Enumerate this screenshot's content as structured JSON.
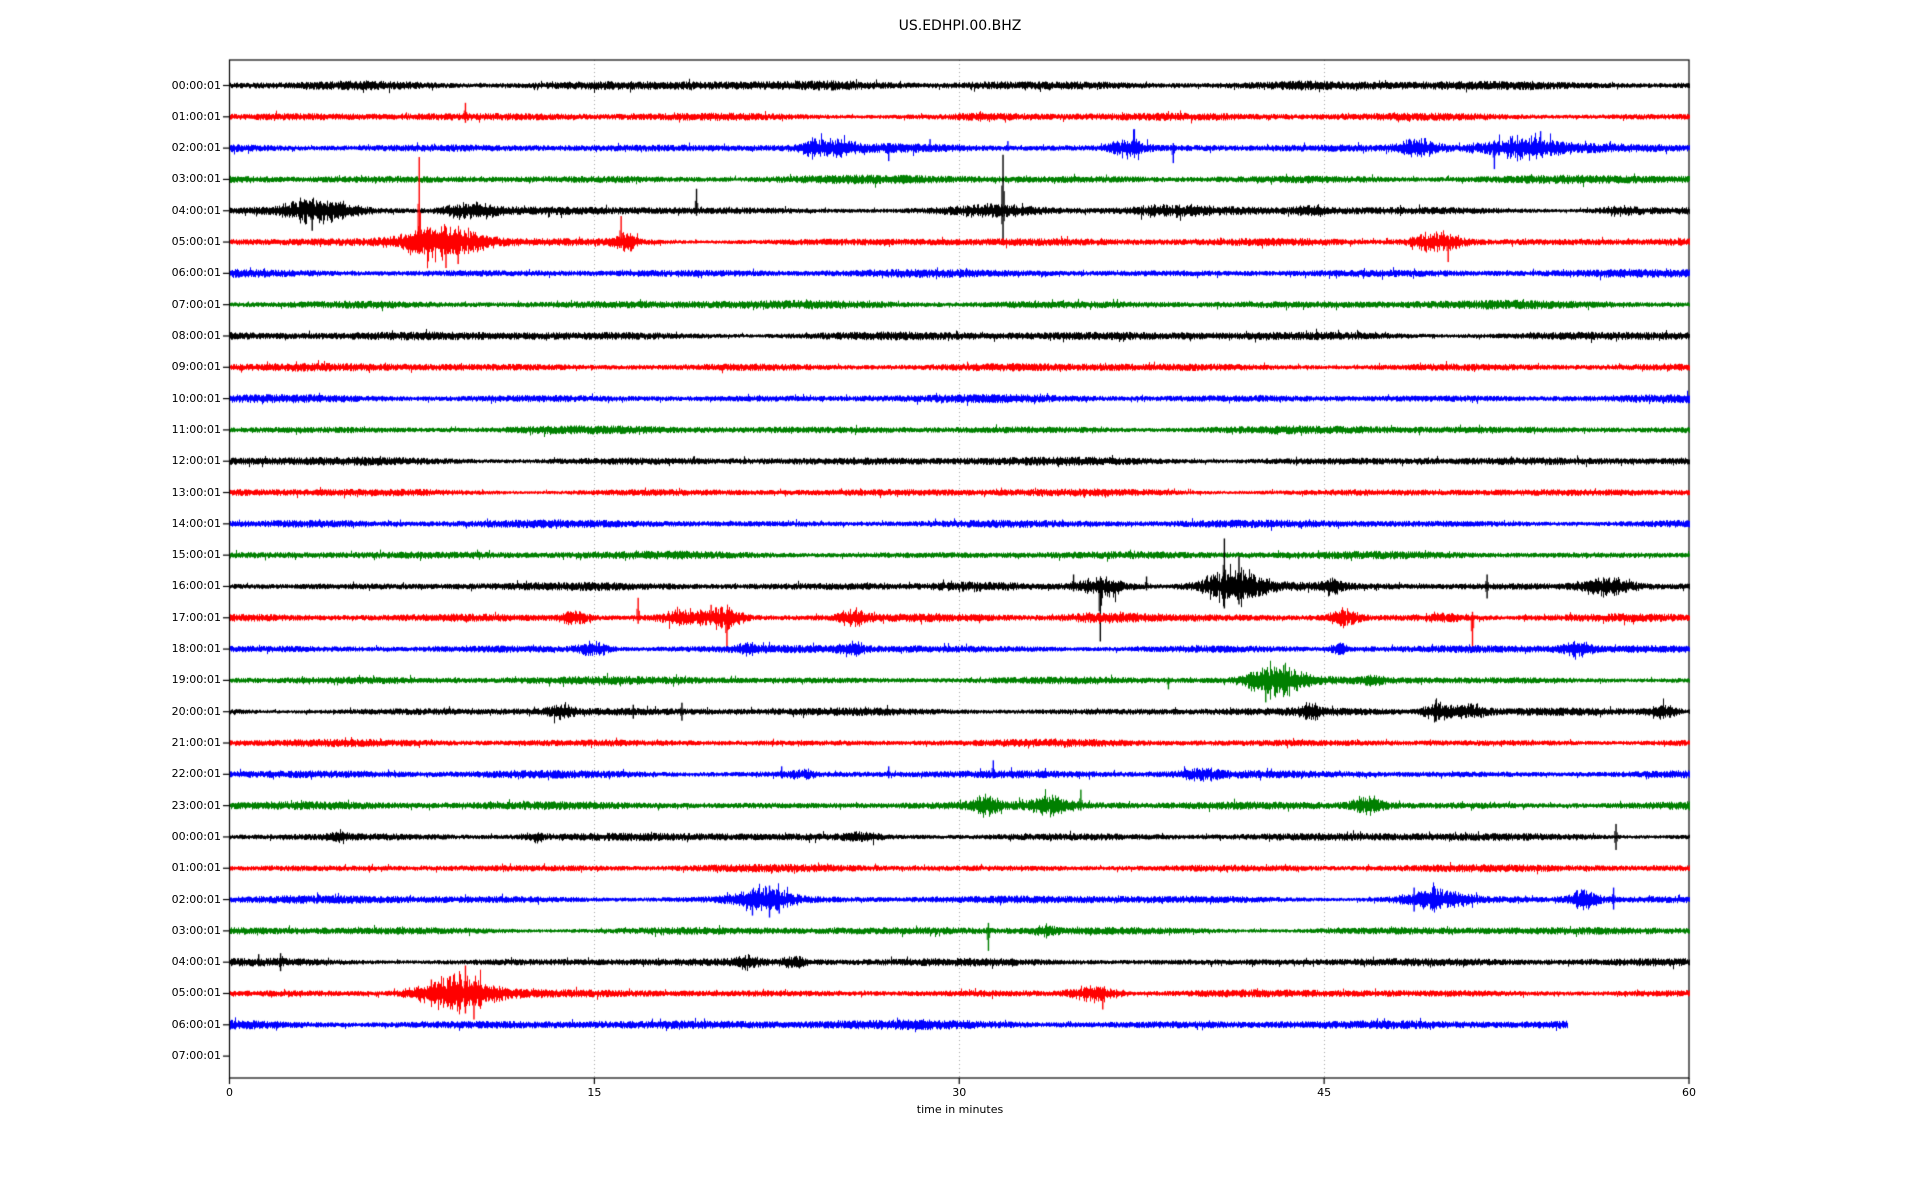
{
  "figure": {
    "title": "US.EDHPI.00.BHZ"
  },
  "chart_data": {
    "type": "line",
    "variant": "seismogram-helicorder-dayplot",
    "title": "US.EDHPI.00.BHZ",
    "xlabel": "time in minutes",
    "xlim": [
      0,
      60
    ],
    "x_ticks": [
      "0",
      "15",
      "30",
      "45",
      "60"
    ],
    "x_tick_values": [
      0,
      15,
      30,
      45,
      60
    ],
    "grid_minutes": [
      15,
      30,
      45
    ],
    "grid_style": "dotted-gray",
    "legend": "none",
    "color_cycle": [
      "#000000",
      "#ff0000",
      "#0000ff",
      "#008000"
    ],
    "grid_color": "#999999",
    "axis_color": "#000000",
    "minutes_per_row": 60,
    "rows": [
      {
        "label": "00:00:01",
        "color": 0,
        "noise": 3.8,
        "end": 60,
        "bursts": [
          {
            "m": 6,
            "w": 4,
            "a": 0.8
          },
          {
            "m": 25,
            "w": 3,
            "a": 0.8
          },
          {
            "m": 31,
            "w": 2,
            "a": 0.8
          },
          {
            "m": 44,
            "w": 2,
            "a": 0.8
          }
        ],
        "spikes": []
      },
      {
        "label": "01:00:01",
        "color": 1,
        "noise": 3.4,
        "end": 60,
        "bursts": [
          {
            "m": 31,
            "w": 1.5,
            "a": 1.5
          }
        ],
        "spikes": [
          {
            "m": 9.7,
            "u": 14,
            "d": 6
          }
        ]
      },
      {
        "label": "02:00:01",
        "color": 2,
        "noise": 3.6,
        "end": 60,
        "bursts": [
          {
            "m": 24.0,
            "w": 0.9,
            "a": 5
          },
          {
            "m": 25.1,
            "w": 0.9,
            "a": 6
          },
          {
            "m": 36.9,
            "w": 1.1,
            "a": 6
          },
          {
            "m": 48.9,
            "w": 1.4,
            "a": 6
          },
          {
            "m": 53.0,
            "w": 2.8,
            "a": 6
          }
        ],
        "spikes": [
          {
            "m": 27.1,
            "u": 5,
            "d": 13
          },
          {
            "m": 28.8,
            "u": 9,
            "d": 4
          },
          {
            "m": 32.0,
            "u": 7,
            "d": 3
          },
          {
            "m": 37.2,
            "u": 19,
            "d": 6
          },
          {
            "m": 38.8,
            "u": 5,
            "d": 15
          },
          {
            "m": 52.0,
            "u": 6,
            "d": 21
          },
          {
            "m": 53.9,
            "u": 17,
            "d": 6
          }
        ]
      },
      {
        "label": "03:00:01",
        "color": 3,
        "noise": 3.6,
        "end": 60,
        "bursts": [],
        "spikes": []
      },
      {
        "label": "04:00:01",
        "color": 0,
        "noise": 3.4,
        "end": 60,
        "bursts": [
          {
            "m": 3.6,
            "w": 2.4,
            "a": 8
          },
          {
            "m": 9.9,
            "w": 1.8,
            "a": 5
          },
          {
            "m": 31.3,
            "w": 3,
            "a": 2.5
          },
          {
            "m": 38.6,
            "w": 3,
            "a": 3
          },
          {
            "m": 44.5,
            "w": 1,
            "a": 2
          },
          {
            "m": 57.2,
            "w": 1.5,
            "a": 2.5
          }
        ],
        "spikes": [
          {
            "m": 3.4,
            "u": 6,
            "d": 20
          },
          {
            "m": 19.2,
            "u": 22,
            "d": 5
          },
          {
            "m": 31.8,
            "u": 56,
            "d": 30
          }
        ]
      },
      {
        "label": "05:00:01",
        "color": 1,
        "noise": 3.4,
        "end": 60,
        "bursts": [
          {
            "m": 8.7,
            "w": 2.8,
            "a": 12
          },
          {
            "m": 16.2,
            "w": 0.9,
            "a": 5
          },
          {
            "m": 49.6,
            "w": 1.8,
            "a": 7
          }
        ],
        "spikes": [
          {
            "m": 7.8,
            "u": 85,
            "d": 12
          },
          {
            "m": 8.9,
            "u": 10,
            "d": 26
          },
          {
            "m": 9.4,
            "u": 8,
            "d": 22
          },
          {
            "m": 16.1,
            "u": 26,
            "d": 6
          },
          {
            "m": 50.1,
            "u": 6,
            "d": 20
          }
        ]
      },
      {
        "label": "06:00:01",
        "color": 2,
        "noise": 3.4,
        "end": 60,
        "bursts": [],
        "spikes": []
      },
      {
        "label": "07:00:01",
        "color": 3,
        "noise": 3.6,
        "end": 60,
        "bursts": [],
        "spikes": []
      },
      {
        "label": "08:00:01",
        "color": 0,
        "noise": 3.8,
        "end": 60,
        "bursts": [],
        "spikes": []
      },
      {
        "label": "09:00:01",
        "color": 1,
        "noise": 3.4,
        "end": 60,
        "bursts": [],
        "spikes": []
      },
      {
        "label": "10:00:01",
        "color": 2,
        "noise": 3.4,
        "end": 60,
        "bursts": [],
        "spikes": []
      },
      {
        "label": "11:00:01",
        "color": 3,
        "noise": 3.4,
        "end": 60,
        "bursts": [],
        "spikes": []
      },
      {
        "label": "12:00:01",
        "color": 0,
        "noise": 3.6,
        "end": 60,
        "bursts": [],
        "spikes": []
      },
      {
        "label": "13:00:01",
        "color": 1,
        "noise": 3.2,
        "end": 60,
        "bursts": [],
        "spikes": []
      },
      {
        "label": "14:00:01",
        "color": 2,
        "noise": 3.4,
        "end": 60,
        "bursts": [],
        "spikes": []
      },
      {
        "label": "15:00:01",
        "color": 3,
        "noise": 3.4,
        "end": 60,
        "bursts": [],
        "spikes": []
      },
      {
        "label": "16:00:01",
        "color": 0,
        "noise": 3.4,
        "end": 60,
        "bursts": [
          {
            "m": 30.5,
            "w": 3,
            "a": 2
          },
          {
            "m": 35.9,
            "w": 1.5,
            "a": 7
          },
          {
            "m": 41.2,
            "w": 2.0,
            "a": 12
          },
          {
            "m": 45.3,
            "w": 0.6,
            "a": 5
          },
          {
            "m": 56.6,
            "w": 1.8,
            "a": 6
          }
        ],
        "spikes": [
          {
            "m": 34.7,
            "u": 12,
            "d": 5
          },
          {
            "m": 35.8,
            "u": 8,
            "d": 55
          },
          {
            "m": 37.7,
            "u": 10,
            "d": 4
          },
          {
            "m": 40.9,
            "u": 48,
            "d": 22
          },
          {
            "m": 41.5,
            "u": 30,
            "d": 18
          },
          {
            "m": 51.7,
            "u": 12,
            "d": 12
          }
        ]
      },
      {
        "label": "17:00:01",
        "color": 1,
        "noise": 3.4,
        "end": 60,
        "bursts": [
          {
            "m": 14.2,
            "w": 0.9,
            "a": 5
          },
          {
            "m": 18.8,
            "w": 1.8,
            "a": 5
          },
          {
            "m": 20.4,
            "w": 1.1,
            "a": 7
          },
          {
            "m": 25.6,
            "w": 1.0,
            "a": 5
          },
          {
            "m": 35.8,
            "w": 2.5,
            "a": 2
          },
          {
            "m": 45.8,
            "w": 0.9,
            "a": 6
          },
          {
            "m": 49.9,
            "w": 2,
            "a": 2
          }
        ],
        "spikes": [
          {
            "m": 16.8,
            "u": 20,
            "d": 6
          },
          {
            "m": 19.8,
            "u": 13,
            "d": 5
          },
          {
            "m": 20.45,
            "u": 8,
            "d": 34
          },
          {
            "m": 51.1,
            "u": 6,
            "d": 30
          }
        ]
      },
      {
        "label": "18:00:01",
        "color": 2,
        "noise": 3.4,
        "end": 60,
        "bursts": [
          {
            "m": 14.9,
            "w": 1.0,
            "a": 5
          },
          {
            "m": 21.3,
            "w": 0.6,
            "a": 3
          },
          {
            "m": 25.6,
            "w": 0.8,
            "a": 4
          },
          {
            "m": 45.6,
            "w": 0.7,
            "a": 3
          },
          {
            "m": 55.4,
            "w": 0.9,
            "a": 4
          }
        ],
        "spikes": []
      },
      {
        "label": "19:00:01",
        "color": 3,
        "noise": 3.4,
        "end": 60,
        "bursts": [
          {
            "m": 43.0,
            "w": 1.8,
            "a": 11
          },
          {
            "m": 47.0,
            "w": 0.6,
            "a": 3
          }
        ],
        "spikes": [
          {
            "m": 38.6,
            "u": 3,
            "d": 9
          },
          {
            "m": 42.6,
            "u": 10,
            "d": 22
          },
          {
            "m": 43.4,
            "u": 16,
            "d": 12
          }
        ]
      },
      {
        "label": "20:00:01",
        "color": 0,
        "noise": 3.4,
        "end": 60,
        "bursts": [
          {
            "m": 13.6,
            "w": 0.8,
            "a": 4
          },
          {
            "m": 44.4,
            "w": 0.7,
            "a": 5
          },
          {
            "m": 49.7,
            "w": 0.9,
            "a": 7
          },
          {
            "m": 51.0,
            "w": 1.0,
            "a": 5
          },
          {
            "m": 58.9,
            "w": 0.9,
            "a": 5
          }
        ],
        "spikes": [
          {
            "m": 16.6,
            "u": 7,
            "d": 7
          },
          {
            "m": 18.6,
            "u": 9,
            "d": 9
          },
          {
            "m": 49.6,
            "u": 12,
            "d": 10
          }
        ]
      },
      {
        "label": "21:00:01",
        "color": 1,
        "noise": 3.2,
        "end": 60,
        "bursts": [],
        "spikes": []
      },
      {
        "label": "22:00:01",
        "color": 2,
        "noise": 3.4,
        "end": 60,
        "bursts": [
          {
            "m": 23.5,
            "w": 0.8,
            "a": 3
          },
          {
            "m": 39.9,
            "w": 1.4,
            "a": 3
          }
        ],
        "spikes": [
          {
            "m": 22.7,
            "u": 8,
            "d": 4
          },
          {
            "m": 27.1,
            "u": 8,
            "d": 4
          },
          {
            "m": 31.4,
            "u": 14,
            "d": 4
          }
        ]
      },
      {
        "label": "23:00:01",
        "color": 3,
        "noise": 3.6,
        "end": 60,
        "bursts": [
          {
            "m": 31.1,
            "w": 0.9,
            "a": 6
          },
          {
            "m": 33.8,
            "w": 1.3,
            "a": 6
          },
          {
            "m": 46.8,
            "w": 1.1,
            "a": 6
          }
        ],
        "spikes": [
          {
            "m": 35.0,
            "u": 16,
            "d": 5
          }
        ]
      },
      {
        "label": "00:00:01",
        "color": 0,
        "noise": 3.4,
        "end": 60,
        "bursts": [
          {
            "m": 4.5,
            "w": 0.6,
            "a": 3
          },
          {
            "m": 12.5,
            "w": 0.7,
            "a": 3
          },
          {
            "m": 26.0,
            "w": 1.2,
            "a": 2
          }
        ],
        "spikes": [
          {
            "m": 57.0,
            "u": 13,
            "d": 13
          }
        ]
      },
      {
        "label": "01:00:01",
        "color": 1,
        "noise": 3.2,
        "end": 60,
        "bursts": [],
        "spikes": []
      },
      {
        "label": "02:00:01",
        "color": 2,
        "noise": 3.4,
        "end": 60,
        "bursts": [
          {
            "m": 21.9,
            "w": 1.8,
            "a": 9
          },
          {
            "m": 49.5,
            "w": 2.0,
            "a": 7
          },
          {
            "m": 55.7,
            "w": 1.1,
            "a": 6
          }
        ],
        "spikes": [
          {
            "m": 21.5,
            "u": 10,
            "d": 16
          },
          {
            "m": 22.2,
            "u": 14,
            "d": 18
          },
          {
            "m": 22.6,
            "u": 8,
            "d": 14
          },
          {
            "m": 48.7,
            "u": 12,
            "d": 12
          },
          {
            "m": 56.9,
            "u": 12,
            "d": 10
          }
        ]
      },
      {
        "label": "03:00:01",
        "color": 3,
        "noise": 3.4,
        "end": 60,
        "bursts": [
          {
            "m": 33.5,
            "w": 0.7,
            "a": 4
          }
        ],
        "spikes": [
          {
            "m": 31.2,
            "u": 8,
            "d": 20
          }
        ]
      },
      {
        "label": "04:00:01",
        "color": 0,
        "noise": 3.4,
        "end": 60,
        "bursts": [
          {
            "m": 21.3,
            "w": 0.8,
            "a": 4
          },
          {
            "m": 23.2,
            "w": 0.8,
            "a": 3
          }
        ],
        "spikes": [
          {
            "m": 1.2,
            "u": 8,
            "d": 4
          },
          {
            "m": 2.1,
            "u": 9,
            "d": 9
          }
        ]
      },
      {
        "label": "05:00:01",
        "color": 1,
        "noise": 3.2,
        "end": 60,
        "bursts": [
          {
            "m": 9.3,
            "w": 2.6,
            "a": 13
          },
          {
            "m": 35.6,
            "w": 1.6,
            "a": 6
          }
        ],
        "spikes": [
          {
            "m": 8.3,
            "u": 14,
            "d": 8
          },
          {
            "m": 9.7,
            "u": 28,
            "d": 20
          },
          {
            "m": 10.05,
            "u": 12,
            "d": 26
          },
          {
            "m": 35.9,
            "u": 6,
            "d": 16
          }
        ]
      },
      {
        "label": "06:00:01",
        "color": 2,
        "noise": 4.0,
        "end": 55,
        "bursts": [],
        "spikes": []
      },
      {
        "label": "07:00:01",
        "color": 3,
        "noise": 0,
        "end": 0,
        "bursts": [],
        "spikes": []
      }
    ]
  }
}
